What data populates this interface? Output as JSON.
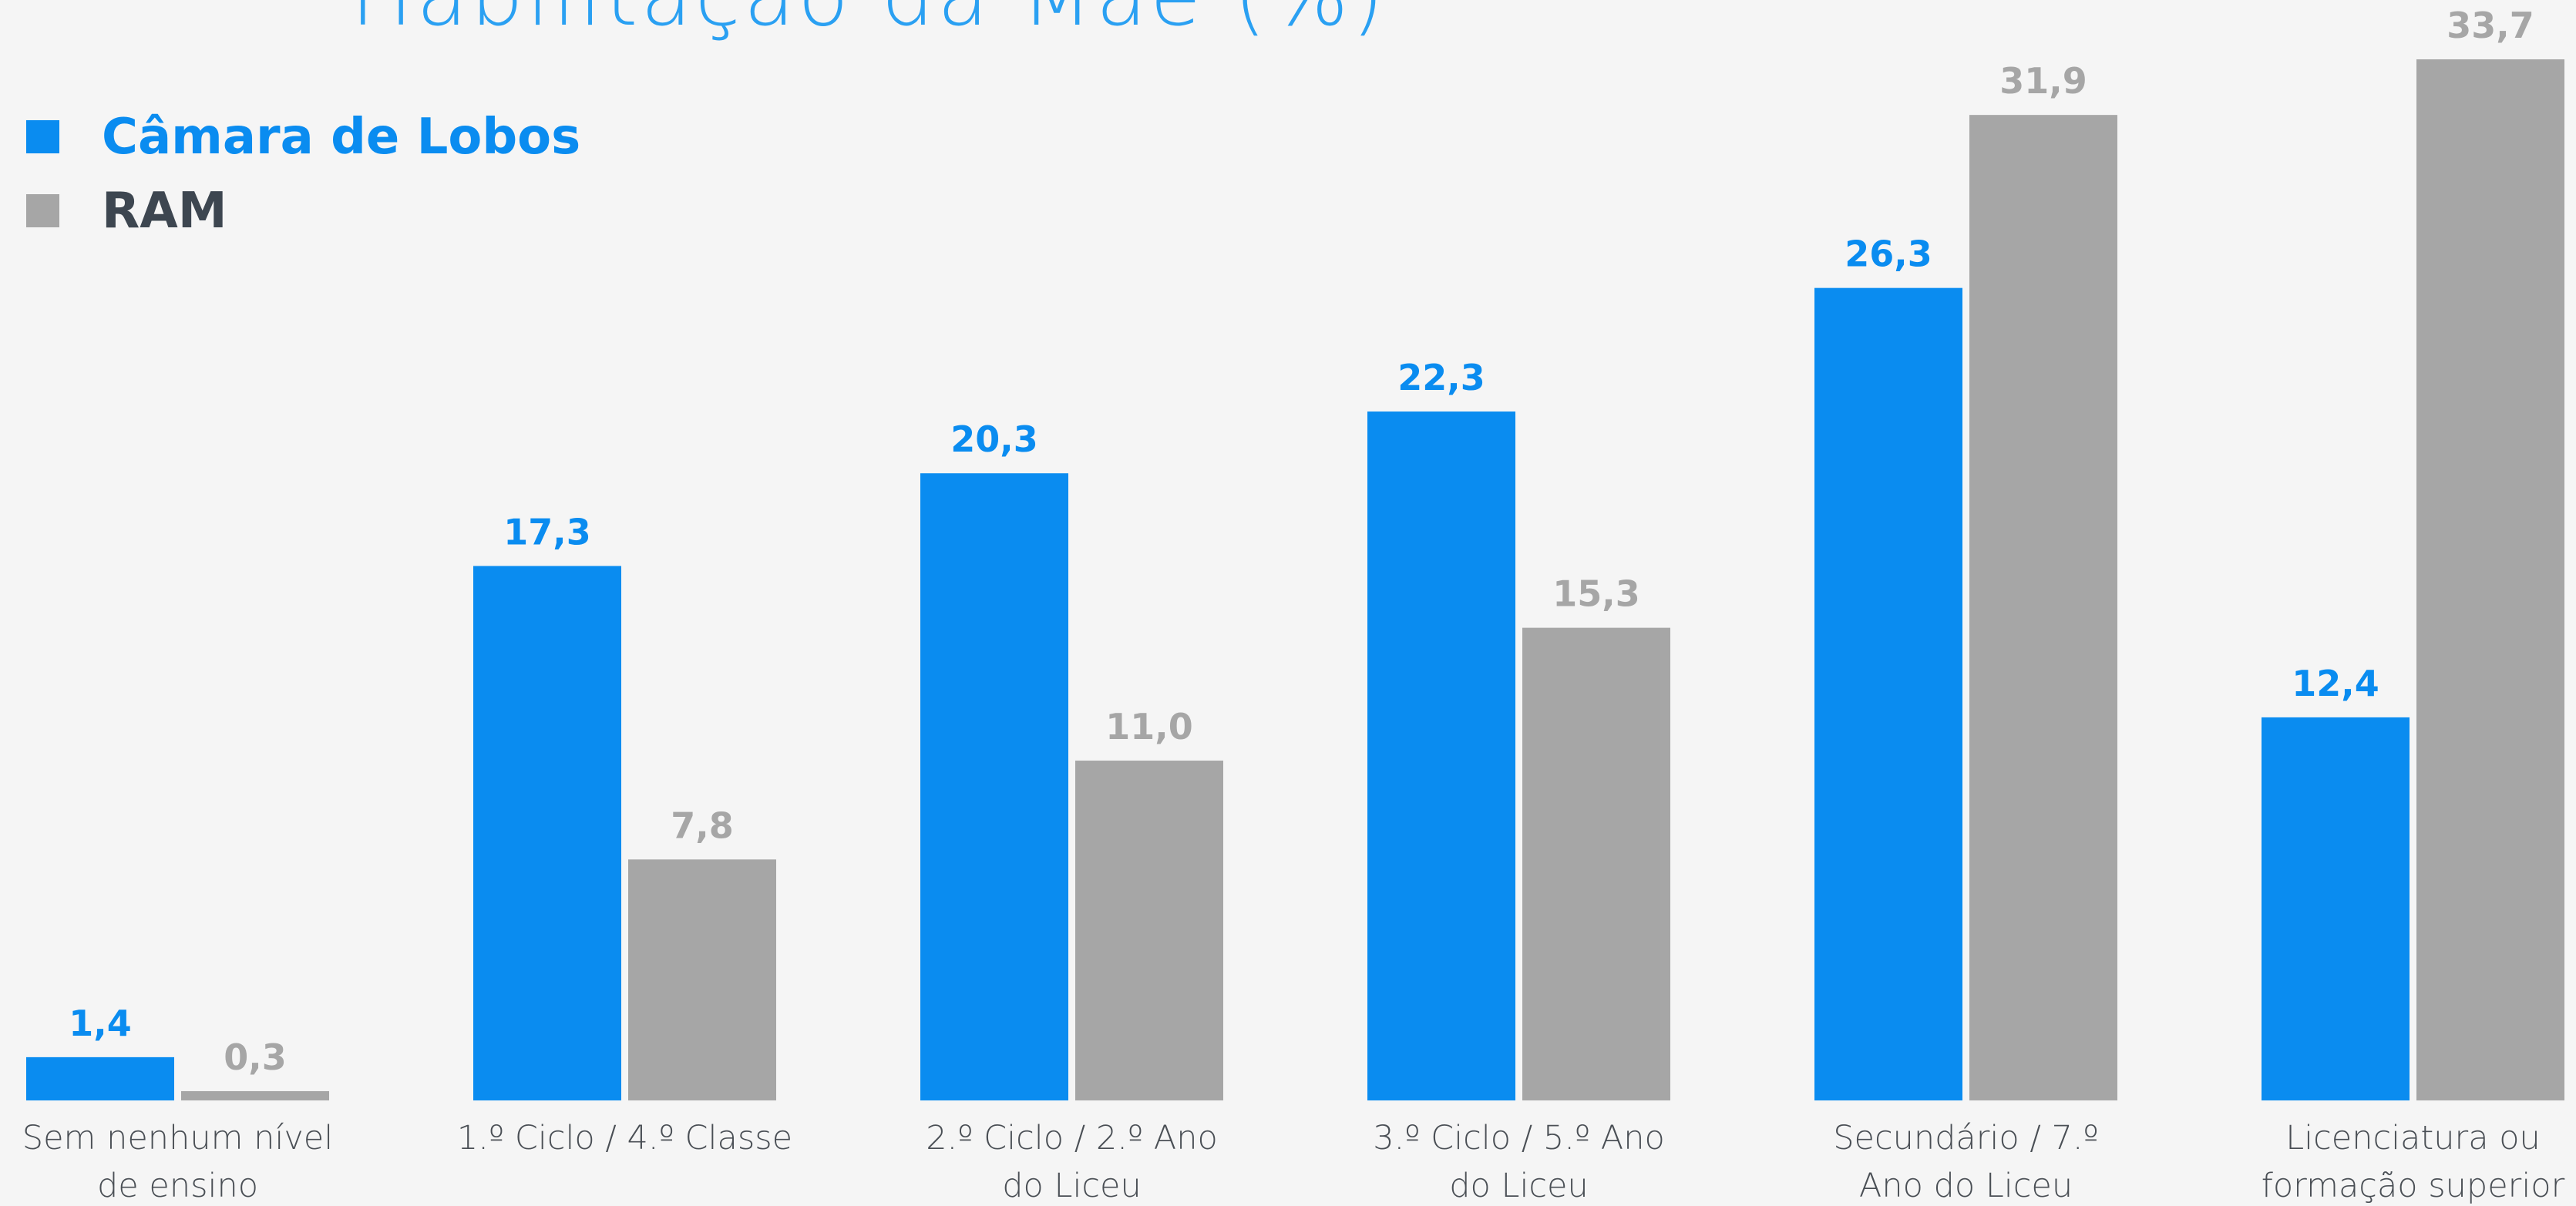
{
  "chart_data": {
    "type": "bar",
    "title": "Habilitação da Mãe (%)",
    "categories": [
      "Sem nenhum nível de ensino",
      "1.º Ciclo / 4.º Classe",
      "2.º Ciclo / 2.º Ano do Liceu",
      "3.º Ciclo / 5.º Ano do Liceu",
      "Secundário / 7.º Ano do Liceu",
      "Licenciatura ou formação superior"
    ],
    "series": [
      {
        "name": "Câmara de Lobos",
        "color": "#0a8cf0",
        "values": [
          1.4,
          17.3,
          20.3,
          22.3,
          26.3,
          12.4
        ],
        "value_labels": [
          "1,4",
          "17,3",
          "20,3",
          "22,3",
          "26,3",
          "12,4"
        ]
      },
      {
        "name": "RAM",
        "color": "#a6a6a6",
        "values": [
          0.3,
          7.8,
          11.0,
          15.3,
          31.9,
          33.7
        ],
        "value_labels": [
          "0,3",
          "7,8",
          "11,0",
          "15,3",
          "31,9",
          "33,7"
        ]
      }
    ],
    "legend": "top-left"
  }
}
